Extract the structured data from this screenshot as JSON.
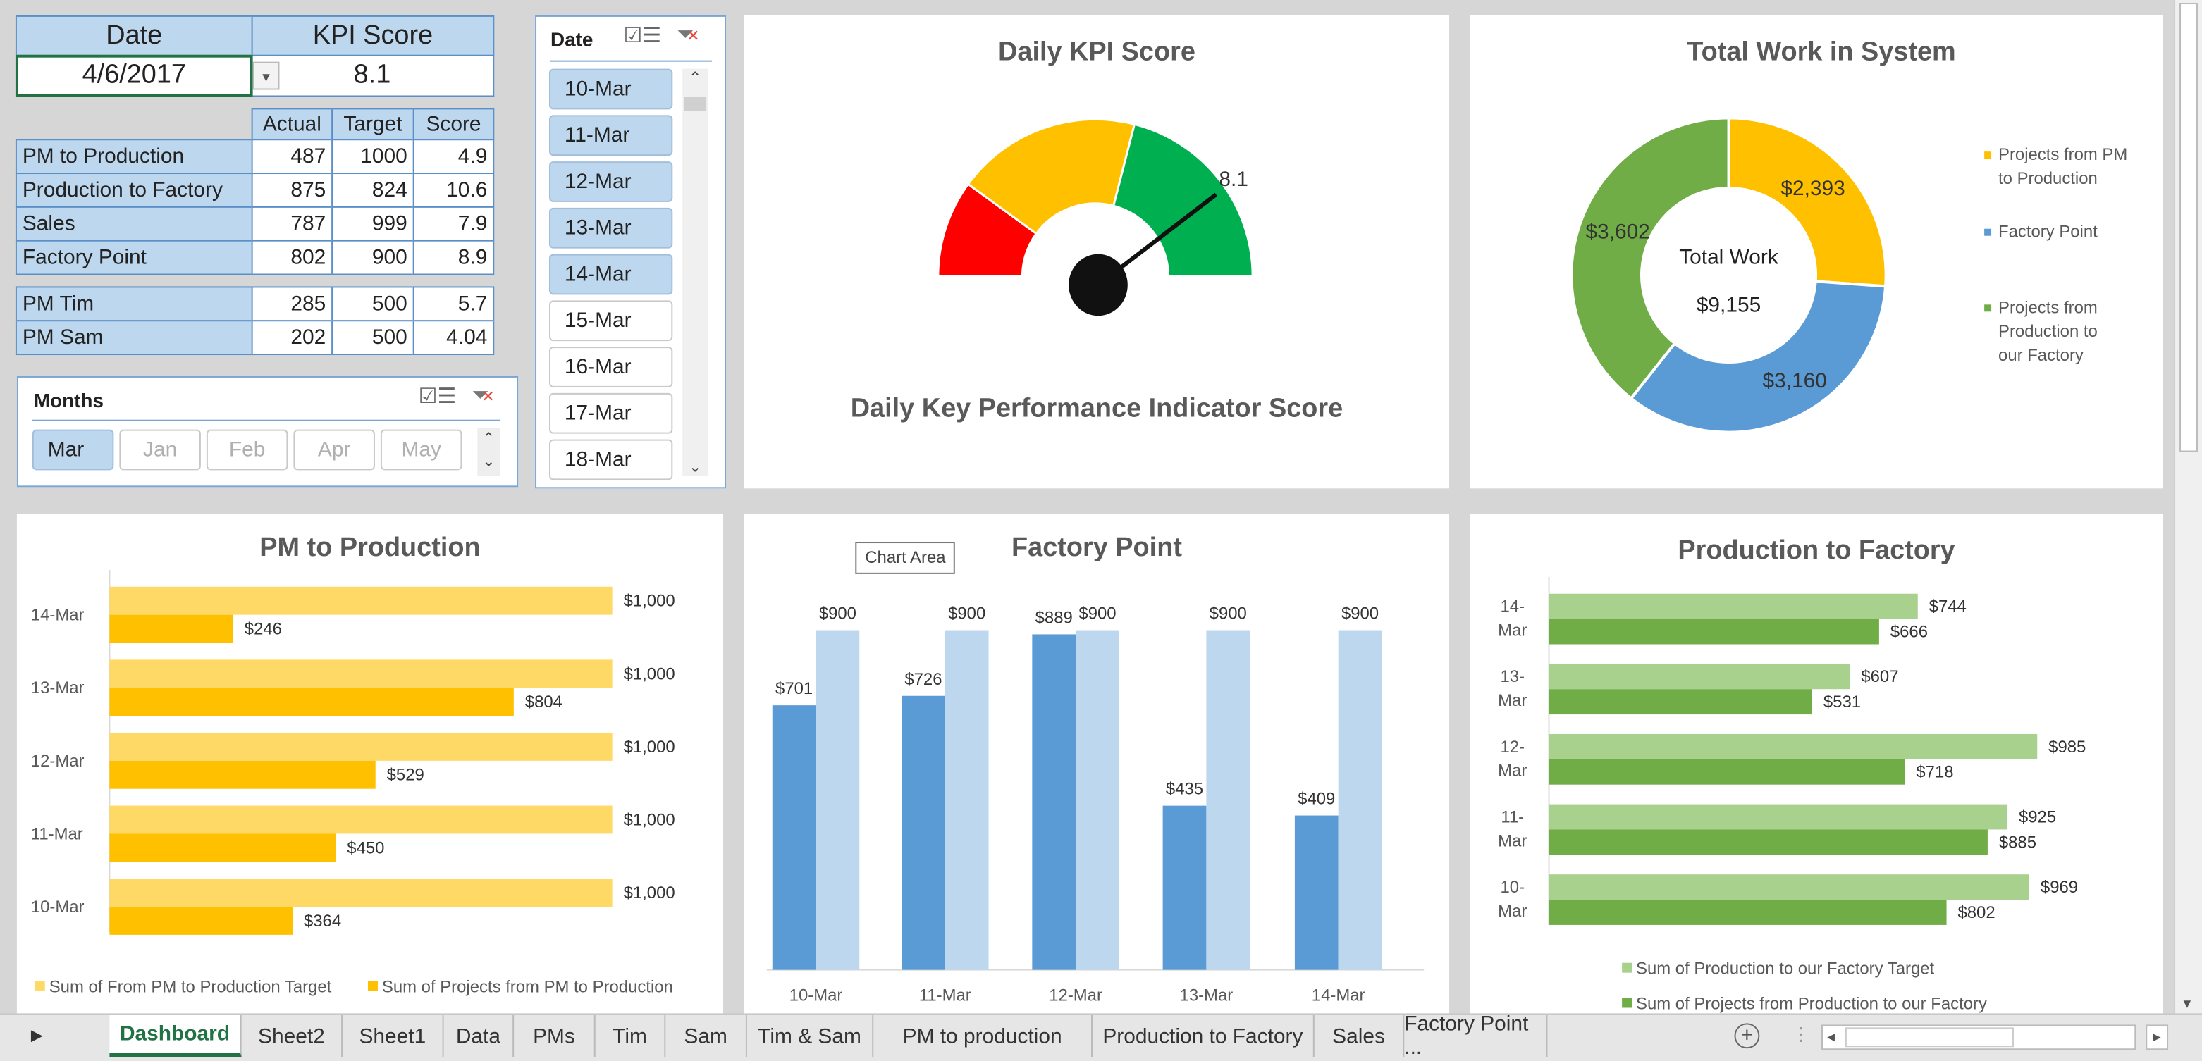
{
  "kpi_table": {
    "date_header": "Date",
    "kpi_header": "KPI Score",
    "date_value": "4/6/2017",
    "kpi_value": "8.1",
    "columns": [
      "Actual",
      "Target",
      "Score"
    ],
    "rows": [
      {
        "label": "PM to Production",
        "actual": "487",
        "target": "1000",
        "score": "4.9"
      },
      {
        "label": "Production to Factory",
        "actual": "875",
        "target": "824",
        "score": "10.6"
      },
      {
        "label": "Sales",
        "actual": "787",
        "target": "999",
        "score": "7.9"
      },
      {
        "label": "Factory Point",
        "actual": "802",
        "target": "900",
        "score": "8.9"
      }
    ],
    "pm_rows": [
      {
        "label": "PM Tim",
        "actual": "285",
        "target": "500",
        "score": "5.7"
      },
      {
        "label": "PM Sam",
        "actual": "202",
        "target": "500",
        "score": "4.04"
      }
    ]
  },
  "months_slicer": {
    "title": "Months",
    "items": [
      {
        "label": "Mar",
        "selected": true
      },
      {
        "label": "Jan",
        "selected": false
      },
      {
        "label": "Feb",
        "selected": false
      },
      {
        "label": "Apr",
        "selected": false
      },
      {
        "label": "May",
        "selected": false
      }
    ]
  },
  "date_slicer": {
    "title": "Date",
    "items": [
      {
        "label": "10-Mar",
        "selected": true
      },
      {
        "label": "11-Mar",
        "selected": true
      },
      {
        "label": "12-Mar",
        "selected": true
      },
      {
        "label": "13-Mar",
        "selected": true
      },
      {
        "label": "14-Mar",
        "selected": true
      },
      {
        "label": "15-Mar",
        "selected": false
      },
      {
        "label": "16-Mar",
        "selected": false
      },
      {
        "label": "17-Mar",
        "selected": false
      },
      {
        "label": "18-Mar",
        "selected": false
      }
    ]
  },
  "tooltip": "Chart Area",
  "chart_data": [
    {
      "type": "gauge",
      "title": "Daily KPI Score",
      "subtitle": "Daily Key Performance Indicator Score",
      "value": 8.1,
      "value_label": "8.1",
      "range": [
        0,
        10
      ],
      "bands": [
        {
          "from": 0,
          "to": 2,
          "color": "#ff0000"
        },
        {
          "from": 2,
          "to": 5.8,
          "color": "#ffc000"
        },
        {
          "from": 5.8,
          "to": 10,
          "color": "#00b050"
        }
      ]
    },
    {
      "type": "pie",
      "title": "Total Work in System",
      "center_label": "Total Work",
      "center_value": "$9,155",
      "slices": [
        {
          "name": "Projects from PM to Production",
          "value": 2393,
          "label": "$2,393",
          "color": "#ffc000"
        },
        {
          "name": "Factory Point",
          "value": 3160,
          "label": "$3,160",
          "color": "#5b9bd5"
        },
        {
          "name": "Projects from Production to our Factory",
          "value": 3602,
          "label": "$3,602",
          "color": "#70ad47"
        }
      ],
      "legend": "right"
    },
    {
      "type": "bar",
      "orientation": "horizontal",
      "title": "PM to Production",
      "categories": [
        "14-Mar",
        "13-Mar",
        "12-Mar",
        "11-Mar",
        "10-Mar"
      ],
      "series": [
        {
          "name": "Sum of From PM to Production Target",
          "values": [
            1000,
            1000,
            1000,
            1000,
            1000
          ],
          "labels": [
            "$1,000",
            "$1,000",
            "$1,000",
            "$1,000",
            "$1,000"
          ],
          "color": "#ffd966"
        },
        {
          "name": "Sum of Projects from PM to Production",
          "values": [
            246,
            804,
            529,
            450,
            364
          ],
          "labels": [
            "$246",
            "$804",
            "$529",
            "$450",
            "$364"
          ],
          "color": "#ffc000"
        }
      ],
      "xlim": [
        0,
        1000
      ],
      "legend": "bottom"
    },
    {
      "type": "bar",
      "orientation": "vertical",
      "title": "Factory Point",
      "categories": [
        "10-Mar",
        "11-Mar",
        "12-Mar",
        "13-Mar",
        "14-Mar"
      ],
      "series": [
        {
          "values": [
            701,
            726,
            889,
            435,
            409
          ],
          "labels": [
            "$701",
            "$726",
            "$889",
            "$435",
            "$409"
          ],
          "color": "#5b9bd5"
        },
        {
          "values": [
            900,
            900,
            900,
            900,
            900
          ],
          "labels": [
            "$900",
            "$900",
            "$900",
            "$900",
            "$900"
          ],
          "color": "#bdd7ee"
        }
      ],
      "ylim": [
        0,
        900
      ]
    },
    {
      "type": "bar",
      "orientation": "horizontal",
      "title": "Production to Factory",
      "categories": [
        "14-Mar",
        "13-Mar",
        "12-Mar",
        "11-Mar",
        "10-Mar"
      ],
      "series": [
        {
          "name": "Sum of Production to our Factory Target",
          "values": [
            744,
            607,
            985,
            925,
            969
          ],
          "labels": [
            "$744",
            "$607",
            "$985",
            "$925",
            "$969"
          ],
          "color": "#a9d18e"
        },
        {
          "name": "Sum of Projects from Production to our Factory",
          "values": [
            666,
            531,
            718,
            885,
            802
          ],
          "labels": [
            "$666",
            "$531",
            "$718",
            "$885",
            "$802"
          ],
          "color": "#70ad47"
        }
      ],
      "xlim": [
        0,
        985
      ],
      "legend": "bottom"
    }
  ],
  "sheet_tabs": [
    "Dashboard",
    "Sheet2",
    "Sheet1",
    "Data",
    "PMs",
    "Tim",
    "Sam",
    "Tim & Sam",
    "PM to production",
    "Production to Factory",
    "Sales",
    "Factory Point ..."
  ],
  "active_tab": "Dashboard"
}
